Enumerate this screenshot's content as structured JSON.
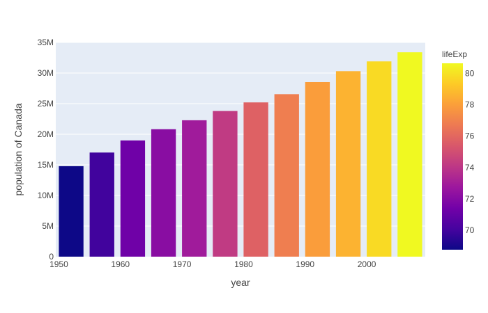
{
  "chart_data": {
    "type": "bar",
    "xlabel": "year",
    "ylabel": "population of Canada",
    "x": [
      1952,
      1957,
      1962,
      1967,
      1972,
      1977,
      1982,
      1987,
      1992,
      1997,
      2002,
      2007
    ],
    "values": [
      14785584,
      17010154,
      18985849,
      20819767,
      22284500,
      23796400,
      25201900,
      26549700,
      28523502,
      30305843,
      31902268,
      33390141
    ],
    "color_values": [
      68.75,
      69.96,
      71.3,
      72.13,
      72.88,
      74.21,
      75.76,
      76.86,
      77.95,
      78.61,
      79.77,
      80.65
    ],
    "xlim": [
      1949.5,
      2009.5
    ],
    "ylim": [
      0,
      35000000
    ],
    "xticks": [
      1950,
      1960,
      1970,
      1980,
      1990,
      2000
    ],
    "xtick_labels": [
      "1950",
      "1960",
      "1970",
      "1980",
      "1990",
      "2000"
    ],
    "yticks": [
      0,
      5000000,
      10000000,
      15000000,
      20000000,
      25000000,
      30000000,
      35000000
    ],
    "ytick_labels": [
      "0",
      "5M",
      "10M",
      "15M",
      "20M",
      "25M",
      "30M",
      "35M"
    ],
    "grid": true,
    "colorbar": {
      "title": "lifeExp",
      "range": [
        68.75,
        80.65
      ],
      "ticks": [
        70,
        72,
        74,
        76,
        78,
        80
      ],
      "tick_labels": [
        "70",
        "72",
        "74",
        "76",
        "78",
        "80"
      ],
      "colorscale": [
        "#0d0887",
        "#46039f",
        "#7201a8",
        "#9c179e",
        "#bd3786",
        "#d8576b",
        "#ed7953",
        "#fb9f3a",
        "#fdca26",
        "#f0f921"
      ]
    },
    "plot_background": "#e5ecf6",
    "gridline_color": "#ffffff"
  }
}
